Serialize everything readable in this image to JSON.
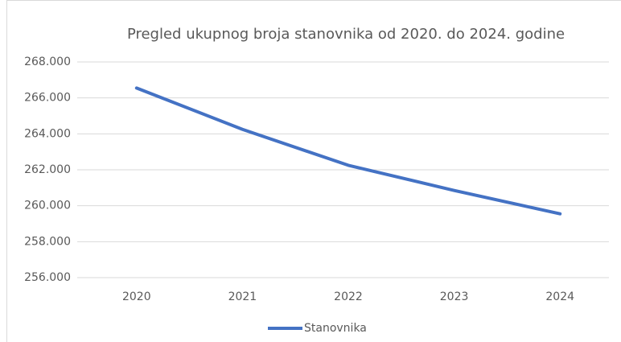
{
  "chart_data": {
    "type": "line",
    "title": "Pregled ukupnog broja stanovnika od 2020. do 2024. godine",
    "categories": [
      "2020",
      "2021",
      "2022",
      "2023",
      "2024"
    ],
    "series": [
      {
        "name": "Stanovnika",
        "color": "#4472c4",
        "values": [
          266550,
          264250,
          262250,
          260850,
          259550
        ]
      }
    ],
    "ylim": [
      256000,
      268000
    ],
    "yticks": [
      {
        "value": 256000,
        "label": "256.000"
      },
      {
        "value": 258000,
        "label": "258.000"
      },
      {
        "value": 260000,
        "label": "260.000"
      },
      {
        "value": 262000,
        "label": "262.000"
      },
      {
        "value": 264000,
        "label": "264.000"
      },
      {
        "value": 266000,
        "label": "266.000"
      },
      {
        "value": 268000,
        "label": "268.000"
      }
    ],
    "grid": true,
    "legend": "bottom"
  }
}
